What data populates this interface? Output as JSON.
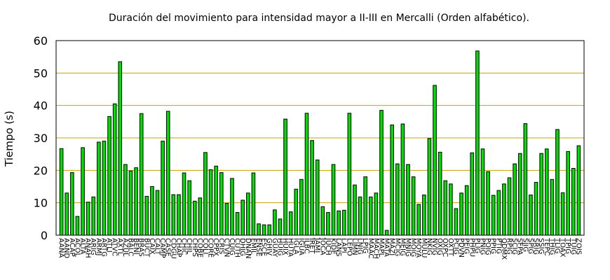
{
  "chart_data": {
    "type": "bar",
    "title": "Duración del movimiento para intensidad mayor a II-III en Mercalli (Orden alfabético).",
    "y_label": "Tiempo (s)",
    "categories": [
      "AANA",
      "AAND",
      "ACAP",
      "ACOL",
      "ALTA",
      "ANAH",
      "ARIG",
      "ARMJ",
      "ARTG",
      "ATLI",
      "ATVC",
      "AXTL",
      "AZUL",
      "BALC",
      "BENI",
      "BRAS",
      "BUCT",
      "CAIX",
      "CALT",
      "CAMP",
      "CASE",
      "CDGU",
      "CHAP",
      "CHIC",
      "CHIL",
      "CHPS",
      "COBE",
      "COLI",
      "CORE",
      "CPPX",
      "CRIS",
      "CTVN",
      "CUIG",
      "CUTH",
      "DHIG",
      "DNAN",
      "EMIL",
      "ENSE",
      "ESCE",
      "GHIV",
      "GUAY",
      "HUIG",
      "HUIX",
      "HUTA",
      "IGLA",
      "IGUA",
      "ILBC",
      "IRET",
      "JAMI",
      "JOCA",
      "JUCH",
      "KIDE",
      "LANS",
      "LAPI",
      "LEPO",
      "LIMN",
      "LNIG",
      "LPIG",
      "MAAC",
      "MACH",
      "MAPL",
      "MATA",
      "MAZI",
      "MCIG",
      "MEIG",
      "MNIG",
      "MOIG",
      "MOYA",
      "MULU",
      "NKIG",
      "NVIG",
      "OXIG",
      "OXPC",
      "OXTT",
      "PCIG",
      "PDVN",
      "PEIG",
      "PHPU",
      "PLIG",
      "PNIG",
      "POIG",
      "PPIG",
      "PTIG",
      "QDMX",
      "RPIG",
      "SCIG",
      "SFPA",
      "SJIG",
      "SPIG",
      "SRIG",
      "SSIG",
      "TEPC",
      "THIG",
      "TLIG",
      "TOAX",
      "TPIG",
      "TUIG",
      "ZOIS"
    ],
    "values": [
      26.7,
      13,
      19.3,
      5.8,
      27,
      10.2,
      11.8,
      28.7,
      29,
      36.6,
      40.5,
      53.5,
      21.8,
      19.8,
      20.8,
      37.5,
      12,
      15,
      13.8,
      29,
      38.2,
      12.5,
      12.5,
      19.2,
      16.8,
      10.5,
      11.5,
      25.5,
      20.2,
      21.3,
      19.3,
      9.8,
      17.5,
      7,
      10.8,
      13,
      19.2,
      3.5,
      3.2,
      3.2,
      7.8,
      5,
      35.8,
      7.2,
      14.2,
      17.2,
      37.6,
      29.2,
      23.2,
      8.8,
      7,
      21.8,
      7.5,
      7.7,
      37.6,
      15.5,
      11.8,
      18,
      11.8,
      13,
      38.5,
      1.5,
      34,
      22,
      34.3,
      21.8,
      18,
      9.5,
      12.4,
      29.8,
      46.2,
      25.6,
      16.8,
      15.8,
      8.2,
      13,
      15.3,
      25.4,
      56.8,
      26.6,
      19.6,
      12.3,
      13.8,
      15.8,
      17.7,
      22,
      25.2,
      34.4,
      12.4,
      16.3,
      25.2,
      26.6,
      17.2,
      32.6,
      13.1,
      25.8,
      20.6,
      27.6
    ],
    "color": "#00e000",
    "ylim": [
      0,
      60
    ],
    "yticks": [
      0,
      10,
      20,
      30,
      40,
      50,
      60
    ],
    "grid": true,
    "grid_color": "#c8a000"
  }
}
